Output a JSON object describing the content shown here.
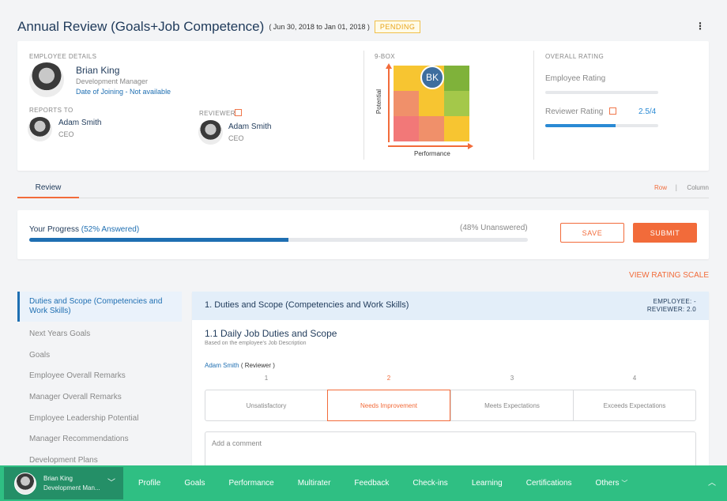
{
  "header": {
    "title": "Annual Review (Goals+Job Competence)",
    "dates": "( Jun 30, 2018 to Jan 01, 2018 )",
    "status": "PENDING",
    "menu_icon": "kebab-menu-icon"
  },
  "summary": {
    "employee_details_label": "EMPLOYEE DETAILS",
    "employee_name": "Brian King",
    "employee_title": "Development Manager",
    "employee_joining": "Date of Joining - Not available",
    "reports_to_label": "REPORTS TO",
    "manager_name": "Adam Smith",
    "manager_title": "CEO",
    "reviewer_label": "REVIEWER",
    "reviewer_name": "Adam Smith",
    "reviewer_title": "CEO",
    "ninebox_label": "9-BOX",
    "ninebox_marker": "BK",
    "ninebox_y_axis": "Potential",
    "ninebox_x_axis": "Performance",
    "ninebox_colors": [
      "#f7c531",
      "#f7c531",
      "#7fb23a",
      "#f0906a",
      "#f7c531",
      "#a4c84a",
      "#f27878",
      "#f0906a",
      "#f7c531"
    ],
    "overall_rating_label": "OVERALL RATING",
    "employee_rating_label": "Employee Rating",
    "employee_rating_fraction": 0,
    "reviewer_rating_label": "Reviewer Rating",
    "reviewer_rating_value": "2.5/4",
    "reviewer_rating_fraction": 0.625
  },
  "tabs": {
    "review": "Review",
    "view_row": "Row",
    "view_sep": "|",
    "view_column": "Column"
  },
  "progress": {
    "label": "Your Progress",
    "answered": "(52% Answered)",
    "answered_fraction": 0.52,
    "unanswered": "(48% Unanswered)",
    "save": "SAVE",
    "submit": "SUBMIT"
  },
  "view_rating_scale": "VIEW RATING SCALE",
  "sections": [
    "Duties and Scope (Competencies and Work Skills)",
    "Next Years Goals",
    "Goals",
    "Employee Overall Remarks",
    "Manager Overall Remarks",
    "Employee Leadership Potential",
    "Manager Recommendations",
    "Development Plans"
  ],
  "section": {
    "title": "1. Duties and Scope (Competencies and Work Skills)",
    "employee_score": "EMPLOYEE: -",
    "reviewer_score": "REVIEWER: 2.0",
    "question_title": "1.1 Daily Job Duties and Scope",
    "question_sub": "Based on the employee's Job Description",
    "reviewer_name": "Adam Smith",
    "reviewer_role": "( Reviewer )",
    "options": [
      {
        "num": "1",
        "label": "Unsatisfactory"
      },
      {
        "num": "2",
        "label": "Needs Improvement"
      },
      {
        "num": "3",
        "label": "Meets Expectations"
      },
      {
        "num": "4",
        "label": "Exceeds Expectations"
      }
    ],
    "selected_option": "2",
    "comment_placeholder": "Add a comment"
  },
  "bottom_nav": {
    "user_name": "Brian King",
    "user_role": "Development Man...",
    "items": [
      "Profile",
      "Goals",
      "Performance",
      "Multirater",
      "Feedback",
      "Check-ins",
      "Learning",
      "Certifications",
      "Others"
    ],
    "others_caret": "﹀",
    "user_caret": "﹀",
    "collapse": "︿"
  }
}
